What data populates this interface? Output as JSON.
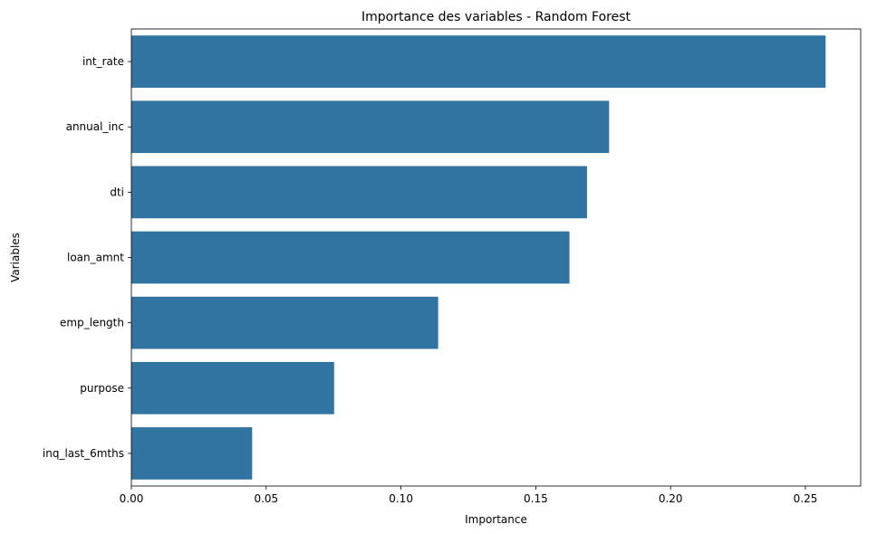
{
  "chart_data": {
    "type": "bar",
    "orientation": "horizontal",
    "title": "Importance des variables - Random Forest",
    "xlabel": "Importance",
    "ylabel": "Variables",
    "categories": [
      "int_rate",
      "annual_inc",
      "dti",
      "loan_amnt",
      "emp_length",
      "purpose",
      "inq_last_6mths"
    ],
    "values": [
      0.2575,
      0.1772,
      0.169,
      0.1625,
      0.1138,
      0.0752,
      0.0448
    ],
    "xlim": [
      0,
      0.2705
    ],
    "xticks": [
      "0.00",
      "0.05",
      "0.10",
      "0.15",
      "0.20",
      "0.25"
    ],
    "grid": false,
    "bar_color": "#3274a1"
  }
}
